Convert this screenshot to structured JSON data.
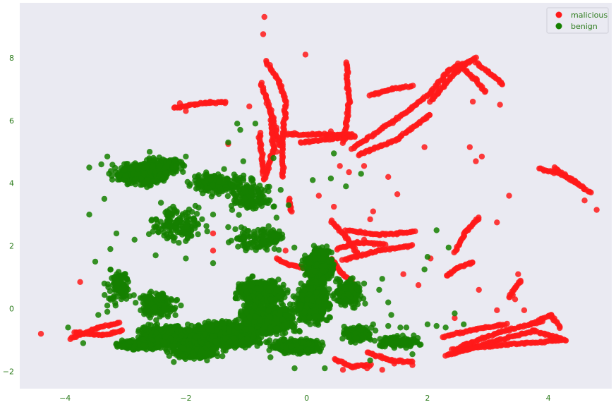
{
  "chart_data": {
    "type": "scatter",
    "title": "",
    "xlabel": "",
    "ylabel": "",
    "xlim": [
      -4.75,
      5.05
    ],
    "ylim": [
      -2.55,
      9.75
    ],
    "xticks": [
      -4,
      -2,
      0,
      2,
      4
    ],
    "yticks": [
      -2,
      0,
      2,
      4,
      6,
      8
    ],
    "grid": false,
    "legend_position": "top-right",
    "colors": {
      "background": "#eaeaf2",
      "tick_text": "#2e7d1e",
      "malicious": "#ff1a1a",
      "benign": "#158000"
    },
    "series": [
      {
        "name": "malicious",
        "color": "#ff1a1a",
        "points": [
          [
            -0.7,
            9.3
          ],
          [
            -0.72,
            8.75
          ],
          [
            -0.02,
            8.1
          ],
          [
            -4.4,
            -0.8
          ],
          [
            -3.75,
            0.85
          ],
          [
            -0.95,
            6.45
          ],
          [
            -2.1,
            6.55
          ],
          [
            -1.85,
            6.5
          ],
          [
            -1.6,
            6.6
          ],
          [
            -1.35,
            6.55
          ],
          [
            4.8,
            3.15
          ],
          [
            4.6,
            3.45
          ],
          [
            3.35,
            3.6
          ],
          [
            3.15,
            2.75
          ],
          [
            1.95,
            5.15
          ],
          [
            3.2,
            6.5
          ],
          [
            2.75,
            6.6
          ],
          [
            2.7,
            5.15
          ],
          [
            2.9,
            4.85
          ],
          [
            2.8,
            4.7
          ],
          [
            1.5,
            3.65
          ],
          [
            1.1,
            3.1
          ],
          [
            1.05,
            2.85
          ],
          [
            0.95,
            2.2
          ],
          [
            1.0,
            -1.9
          ],
          [
            1.25,
            -1.95
          ],
          [
            1.75,
            -1.8
          ],
          [
            0.6,
            -1.95
          ],
          [
            1.45,
            -1.75
          ],
          [
            0.55,
            4.55
          ],
          [
            0.7,
            4.35
          ],
          [
            0.95,
            4.55
          ],
          [
            1.35,
            4.2
          ],
          [
            2.05,
            1.6
          ],
          [
            1.6,
            1.1
          ],
          [
            1.85,
            0.75
          ],
          [
            2.45,
            -0.3
          ],
          [
            0.2,
            3.6
          ],
          [
            0.45,
            3.25
          ],
          [
            -0.35,
            1.85
          ],
          [
            -1.55,
            2.4
          ],
          [
            -1.55,
            1.85
          ],
          [
            3.5,
            1.1
          ],
          [
            2.85,
            0.6
          ],
          [
            3.45,
            0.3
          ],
          [
            3.15,
            -0.05
          ],
          [
            3.6,
            -0.05
          ],
          [
            -1.3,
            5.25
          ],
          [
            -0.5,
            5.0
          ],
          [
            -0.2,
            5.6
          ],
          [
            0.4,
            5.65
          ],
          [
            -2.0,
            6.3
          ]
        ],
        "segments": [
          [
            [
              -0.68,
              7.9
            ],
            [
              -0.45,
              7.2
            ],
            [
              -0.35,
              6.6
            ]
          ],
          [
            [
              -0.75,
              7.2
            ],
            [
              -0.55,
              6.0
            ],
            [
              -0.45,
              5.2
            ]
          ],
          [
            [
              -0.6,
              6.3
            ],
            [
              -0.55,
              5.1
            ],
            [
              -0.7,
              4.1
            ]
          ],
          [
            [
              -0.35,
              6.5
            ],
            [
              -0.4,
              5.2
            ],
            [
              -0.4,
              4.2
            ]
          ],
          [
            [
              -0.78,
              5.6
            ],
            [
              -0.72,
              4.3
            ]
          ],
          [
            [
              -0.4,
              5.55
            ],
            [
              0.75,
              5.55
            ]
          ],
          [
            [
              -0.1,
              5.3
            ],
            [
              0.8,
              5.5
            ]
          ],
          [
            [
              0.65,
              7.85
            ],
            [
              0.7,
              6.6
            ],
            [
              0.62,
              5.3
            ]
          ],
          [
            [
              0.75,
              5.1
            ],
            [
              1.45,
              6.0
            ],
            [
              2.05,
              6.85
            ],
            [
              2.35,
              7.6
            ],
            [
              2.7,
              7.9
            ]
          ],
          [
            [
              0.85,
              4.9
            ],
            [
              1.5,
              5.4
            ],
            [
              2.05,
              6.2
            ]
          ],
          [
            [
              1.05,
              6.8
            ],
            [
              1.4,
              7.0
            ],
            [
              1.75,
              7.1
            ]
          ],
          [
            [
              2.05,
              6.6
            ],
            [
              2.5,
              7.6
            ],
            [
              2.8,
              8.0
            ]
          ],
          [
            [
              2.8,
              7.85
            ],
            [
              3.0,
              7.55
            ],
            [
              3.25,
              7.15
            ]
          ],
          [
            [
              2.5,
              7.8
            ],
            [
              2.8,
              7.3
            ],
            [
              2.95,
              6.9
            ]
          ],
          [
            [
              0.65,
              2.5
            ],
            [
              1.2,
              2.35
            ],
            [
              1.8,
              2.45
            ]
          ],
          [
            [
              0.5,
              1.9
            ],
            [
              0.85,
              2.1
            ],
            [
              1.3,
              2.05
            ]
          ],
          [
            [
              0.6,
              1.55
            ],
            [
              1.2,
              1.85
            ],
            [
              1.75,
              2.0
            ]
          ],
          [
            [
              2.45,
              1.8
            ],
            [
              2.65,
              2.5
            ],
            [
              2.85,
              2.9
            ]
          ],
          [
            [
              2.3,
              1.05
            ],
            [
              2.5,
              1.3
            ],
            [
              2.75,
              1.5
            ]
          ],
          [
            [
              3.35,
              0.35
            ],
            [
              3.45,
              0.65
            ],
            [
              3.55,
              0.9
            ]
          ],
          [
            [
              2.25,
              -0.9
            ],
            [
              2.8,
              -0.65
            ],
            [
              3.3,
              -0.5
            ]
          ],
          [
            [
              2.3,
              -1.5
            ],
            [
              3.1,
              -1.05
            ],
            [
              3.75,
              -0.7
            ],
            [
              4.2,
              -0.95
            ]
          ],
          [
            [
              2.4,
              -1.3
            ],
            [
              3.0,
              -1.2
            ],
            [
              3.6,
              -1.1
            ],
            [
              4.3,
              -1.0
            ]
          ],
          [
            [
              2.55,
              -1.2
            ],
            [
              3.2,
              -0.75
            ],
            [
              3.9,
              -0.4
            ]
          ],
          [
            [
              3.7,
              -0.5
            ],
            [
              4.05,
              -0.2
            ],
            [
              4.2,
              -0.6
            ]
          ],
          [
            [
              3.85,
              4.45
            ],
            [
              4.2,
              4.3
            ],
            [
              4.5,
              4.0
            ]
          ],
          [
            [
              4.1,
              4.5
            ],
            [
              4.3,
              4.2
            ],
            [
              4.7,
              3.7
            ]
          ],
          [
            [
              -3.9,
              -0.95
            ],
            [
              -3.45,
              -0.6
            ],
            [
              -3.1,
              -0.45
            ]
          ],
          [
            [
              -3.85,
              -0.75
            ],
            [
              -3.4,
              -0.85
            ],
            [
              -3.05,
              -0.7
            ]
          ],
          [
            [
              -2.2,
              6.4
            ],
            [
              -1.7,
              6.55
            ],
            [
              -1.35,
              6.6
            ]
          ],
          [
            [
              1.0,
              -1.4
            ],
            [
              1.4,
              -1.65
            ],
            [
              1.75,
              -1.7
            ]
          ],
          [
            [
              0.45,
              -1.6
            ],
            [
              0.75,
              -1.85
            ],
            [
              1.05,
              -1.8
            ]
          ],
          [
            [
              0.4,
              2.8
            ],
            [
              0.65,
              2.3
            ],
            [
              0.85,
              1.7
            ]
          ],
          [
            [
              0.4,
              1.6
            ],
            [
              0.55,
              1.2
            ],
            [
              0.75,
              0.85
            ]
          ],
          [
            [
              -0.5,
              1.6
            ],
            [
              -0.3,
              1.4
            ],
            [
              -0.05,
              1.3
            ]
          ],
          [
            [
              -0.3,
              3.5
            ],
            [
              -0.25,
              3.1
            ]
          ]
        ]
      },
      {
        "name": "benign",
        "color": "#158000",
        "points": [
          [
            -3.6,
            4.5
          ],
          [
            -3.4,
            4.6
          ],
          [
            -3.3,
            4.85
          ],
          [
            -2.6,
            5.0
          ],
          [
            -2.0,
            4.85
          ],
          [
            -1.3,
            5.3
          ],
          [
            -1.1,
            5.7
          ],
          [
            -0.85,
            5.9
          ],
          [
            -1.15,
            5.9
          ],
          [
            -0.55,
            4.8
          ],
          [
            0.1,
            4.1
          ],
          [
            0.4,
            4.15
          ],
          [
            0.65,
            3.9
          ],
          [
            0.9,
            4.3
          ],
          [
            -3.6,
            3.0
          ],
          [
            -3.35,
            3.5
          ],
          [
            -3.15,
            2.4
          ],
          [
            -3.25,
            1.9
          ],
          [
            -3.35,
            0.8
          ],
          [
            -3.5,
            1.5
          ],
          [
            -3.3,
            0.1
          ],
          [
            -3.3,
            -0.1
          ],
          [
            -3.45,
            -0.2
          ],
          [
            -3.95,
            -0.6
          ],
          [
            -3.7,
            -1.1
          ],
          [
            0.95,
            0.8
          ],
          [
            1.2,
            0.6
          ],
          [
            1.25,
            0.95
          ],
          [
            1.35,
            0.2
          ],
          [
            1.4,
            -0.2
          ],
          [
            1.35,
            -0.55
          ],
          [
            1.1,
            -0.5
          ],
          [
            1.55,
            -0.6
          ],
          [
            1.65,
            -0.6
          ],
          [
            1.45,
            -1.1
          ],
          [
            2.0,
            -0.5
          ],
          [
            2.15,
            -0.55
          ],
          [
            2.3,
            -0.6
          ],
          [
            2.6,
            -0.5
          ],
          [
            2.45,
            -0.15
          ],
          [
            1.95,
            1.25
          ],
          [
            2.0,
            1.65
          ],
          [
            2.15,
            2.5
          ],
          [
            2.35,
            1.95
          ],
          [
            1.45,
            -1.25
          ],
          [
            1.75,
            -1.45
          ],
          [
            1.05,
            -1.65
          ],
          [
            0.3,
            -1.9
          ],
          [
            -0.2,
            -1.9
          ],
          [
            -0.6,
            -1.55
          ],
          [
            -1.65,
            -1.65
          ],
          [
            -2.2,
            -1.7
          ],
          [
            -0.55,
            3.25
          ],
          [
            0.5,
            0.95
          ],
          [
            -1.2,
            3.45
          ],
          [
            -1.05,
            4.7
          ],
          [
            -1.45,
            4.05
          ],
          [
            -1.8,
            3.85
          ],
          [
            -2.15,
            3.1
          ],
          [
            -2.5,
            2.6
          ],
          [
            -2.85,
            2.2
          ],
          [
            -2.5,
            1.7
          ],
          [
            -2.0,
            1.6
          ],
          [
            -1.55,
            1.45
          ],
          [
            -1.3,
            2.6
          ],
          [
            -1.55,
            3.0
          ],
          [
            -0.5,
            2.9
          ],
          [
            -0.3,
            3.3
          ],
          [
            0.45,
            4.95
          ]
        ],
        "clusters": [
          [
            -2.75,
            4.3,
            0.55,
            0.45,
            400
          ],
          [
            -2.35,
            4.55,
            0.45,
            0.35,
            200
          ],
          [
            -1.5,
            4.0,
            0.6,
            0.55,
            160
          ],
          [
            -2.1,
            2.7,
            0.6,
            0.75,
            150
          ],
          [
            -0.95,
            3.6,
            0.55,
            0.75,
            130
          ],
          [
            -0.75,
            2.2,
            0.6,
            0.55,
            120
          ],
          [
            -3.1,
            0.7,
            0.3,
            0.9,
            90
          ],
          [
            -2.25,
            -0.9,
            0.7,
            0.45,
            800
          ],
          [
            -1.35,
            -0.85,
            0.8,
            0.55,
            900
          ],
          [
            -0.65,
            -0.35,
            0.6,
            0.6,
            800
          ],
          [
            -0.75,
            0.5,
            0.5,
            0.55,
            500
          ],
          [
            0.1,
            0.2,
            0.35,
            0.8,
            700
          ],
          [
            0.2,
            1.4,
            0.3,
            0.7,
            500
          ],
          [
            -0.15,
            -1.2,
            0.55,
            0.3,
            350
          ],
          [
            -2.8,
            -1.15,
            0.45,
            0.2,
            250
          ],
          [
            -1.85,
            -1.4,
            0.5,
            0.25,
            250
          ],
          [
            0.7,
            0.5,
            0.3,
            0.6,
            200
          ],
          [
            0.85,
            -0.8,
            0.35,
            0.35,
            150
          ],
          [
            -2.45,
            0.1,
            0.4,
            0.5,
            200
          ],
          [
            1.5,
            -1.05,
            0.55,
            0.25,
            120
          ]
        ]
      }
    ]
  }
}
